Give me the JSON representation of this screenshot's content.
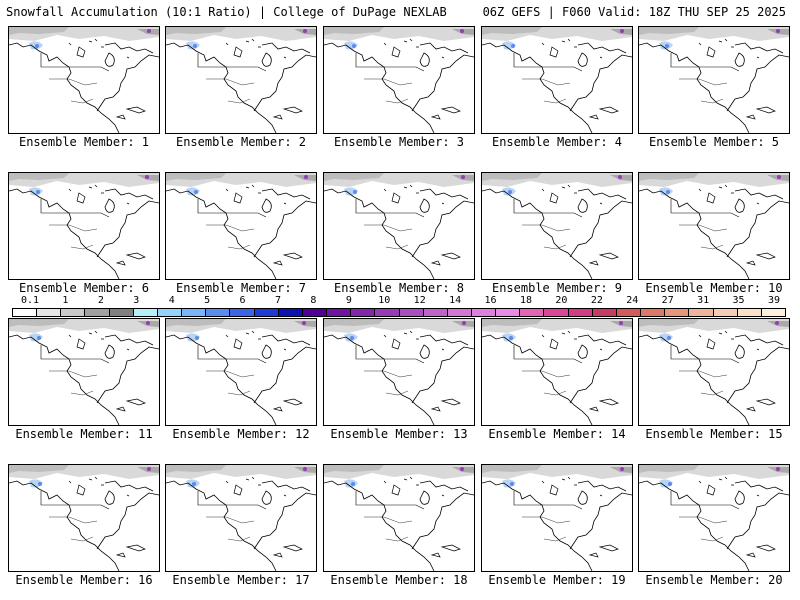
{
  "header": {
    "title_left": "Snowfall Accumulation (10:1 Ratio) | College of DuPage NEXLAB",
    "title_right": "06Z GEFS | F060 Valid: 18Z THU SEP 25 2025"
  },
  "members": [
    "Ensemble Member: 1",
    "Ensemble Member: 2",
    "Ensemble Member: 3",
    "Ensemble Member: 4",
    "Ensemble Member: 5",
    "Ensemble Member: 6",
    "Ensemble Member: 7",
    "Ensemble Member: 8",
    "Ensemble Member: 9",
    "Ensemble Member: 10",
    "Ensemble Member: 11",
    "Ensemble Member: 12",
    "Ensemble Member: 13",
    "Ensemble Member: 14",
    "Ensemble Member: 15",
    "Ensemble Member: 16",
    "Ensemble Member: 17",
    "Ensemble Member: 18",
    "Ensemble Member: 19",
    "Ensemble Member: 20"
  ],
  "colorbar": {
    "labels": [
      "0.1",
      "1",
      "2",
      "3",
      "4",
      "5",
      "6",
      "7",
      "8",
      "9",
      "10",
      "12",
      "14",
      "16",
      "18",
      "20",
      "22",
      "24",
      "27",
      "31",
      "35",
      "39"
    ],
    "colors": [
      "#ffffff",
      "#e6e6e6",
      "#c8c8c8",
      "#a0a0a0",
      "#808080",
      "#b4f0fa",
      "#96d2fa",
      "#78b4fa",
      "#5a8cf0",
      "#3c64e6",
      "#1e3cd2",
      "#0a14b4",
      "#500096",
      "#6e14a0",
      "#8228aa",
      "#963cb4",
      "#aa50be",
      "#be64c8",
      "#d278d2",
      "#dc82dc",
      "#e68ce6",
      "#e664b4",
      "#dc4696",
      "#d23c82",
      "#c83c64",
      "#d25a5a",
      "#dc7864",
      "#e6967d",
      "#f0b49b",
      "#f5cdb4",
      "#fae1c8",
      "#fff0dc"
    ]
  }
}
